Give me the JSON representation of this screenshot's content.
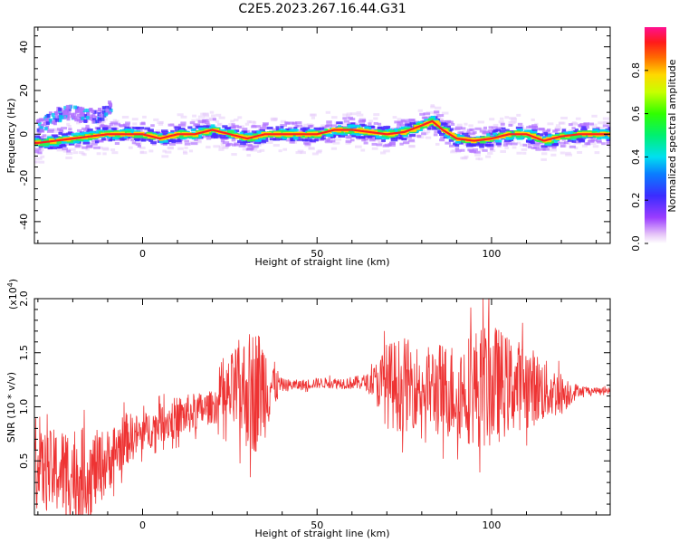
{
  "title": "C2E5.2023.267.16.44.G31",
  "chart_data": [
    {
      "type": "heatmap",
      "xlabel": "Height of straight line (km)",
      "ylabel": "Frequency (Hz)",
      "xlim": [
        -31,
        134
      ],
      "ylim": [
        -50,
        49
      ],
      "x_ticks": [
        0,
        50,
        100
      ],
      "x_tick_labels": [
        "0",
        "50",
        "100"
      ],
      "y_ticks": [
        -40,
        -20,
        0,
        20,
        40
      ],
      "y_tick_labels": [
        "-40",
        "-20",
        "0",
        "20",
        "40"
      ],
      "colorbar": {
        "label": "Normalized spectral amplitude",
        "range": [
          0,
          1
        ],
        "ticks": [
          0,
          0.2,
          0.4,
          0.6,
          0.8
        ],
        "tick_labels": [
          "0.0",
          "0.2",
          "0.4",
          "0.6",
          "0.8"
        ],
        "colormap": "rainbow (violet-blue-cyan-green-yellow-red-magenta)"
      },
      "ridge_frequency": {
        "x": [
          -30,
          -25,
          -20,
          -15,
          -10,
          -5,
          0,
          5,
          10,
          15,
          20,
          25,
          30,
          35,
          40,
          45,
          50,
          55,
          60,
          65,
          70,
          75,
          80,
          83,
          86,
          90,
          95,
          100,
          105,
          110,
          115,
          120,
          125,
          130,
          134
        ],
        "y": [
          -4,
          -3,
          -2,
          -1,
          0,
          0,
          0,
          -2,
          0,
          0,
          2,
          0,
          -2,
          0,
          0,
          0,
          0,
          2,
          2,
          1,
          0,
          1,
          4,
          6,
          2,
          -2,
          -3,
          -2,
          0,
          0,
          -3,
          -1,
          0,
          0,
          0
        ]
      },
      "secondary_branch": {
        "x": [
          -30,
          -27,
          -24,
          -20,
          -16,
          -12,
          -9
        ],
        "y": [
          3,
          6,
          9,
          10,
          8,
          9,
          12
        ]
      }
    },
    {
      "type": "line",
      "xlabel": "Height of straight line (km)",
      "ylabel": "SNR (10 * v/v)",
      "y_scale_label": "(x10^4)",
      "xlim": [
        -31,
        134
      ],
      "ylim": [
        0,
        2.0
      ],
      "x_ticks": [
        0,
        50,
        100
      ],
      "x_tick_labels": [
        "0",
        "50",
        "100"
      ],
      "y_ticks": [
        0.5,
        1.0,
        1.5,
        2.0
      ],
      "y_tick_labels": [
        "0.5",
        "1.0",
        "1.5",
        "2.0"
      ],
      "line_color": "#ee3333",
      "envelope": {
        "x": [
          -31,
          -25,
          -20,
          -15,
          -10,
          -5,
          0,
          5,
          10,
          15,
          20,
          24,
          27,
          30,
          32,
          35,
          38,
          40,
          45,
          50,
          55,
          60,
          65,
          70,
          75,
          80,
          85,
          90,
          95,
          100,
          105,
          110,
          115,
          120,
          125,
          130,
          134
        ],
        "mean": [
          0.4,
          0.4,
          0.4,
          0.38,
          0.5,
          0.7,
          0.75,
          0.85,
          0.9,
          0.95,
          1.0,
          1.1,
          1.15,
          1.15,
          1.15,
          1.2,
          1.2,
          1.2,
          1.2,
          1.22,
          1.22,
          1.22,
          1.23,
          1.2,
          1.2,
          1.2,
          1.15,
          1.15,
          1.18,
          1.2,
          1.2,
          1.2,
          1.15,
          1.12,
          1.15,
          1.15,
          1.15
        ],
        "amplitude": [
          0.35,
          0.4,
          0.45,
          0.4,
          0.3,
          0.25,
          0.18,
          0.18,
          0.2,
          0.18,
          0.15,
          0.3,
          0.45,
          0.55,
          0.6,
          0.5,
          0.2,
          0.06,
          0.05,
          0.05,
          0.05,
          0.06,
          0.08,
          0.4,
          0.45,
          0.35,
          0.45,
          0.45,
          0.55,
          0.6,
          0.45,
          0.4,
          0.3,
          0.2,
          0.05,
          0.03,
          0.03
        ]
      }
    }
  ]
}
